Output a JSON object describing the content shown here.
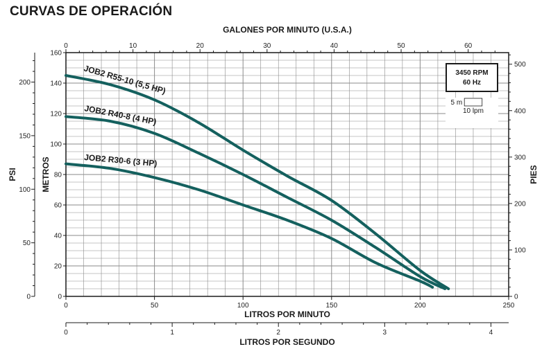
{
  "title": "CURVAS DE OPERACIÓN",
  "chart_data": {
    "type": "line",
    "axes": {
      "x_bottom": {
        "label": "LITROS POR MINUTO",
        "range": [
          0,
          250
        ],
        "ticks": [
          0,
          50,
          100,
          150,
          200,
          250
        ]
      },
      "x_top": {
        "label": "GALONES POR MINUTO (U.S.A.)",
        "range": [
          0,
          66.04
        ],
        "ticks": [
          0,
          10,
          20,
          30,
          40,
          50,
          60
        ]
      },
      "x_bottom2": {
        "label": "LITROS POR SEGUNDO",
        "range": [
          0,
          4.167
        ],
        "ticks": [
          0,
          1,
          2,
          3,
          4
        ]
      },
      "y_left_metros": {
        "label": "METROS",
        "range": [
          0,
          160
        ],
        "ticks": [
          0,
          20,
          40,
          60,
          80,
          100,
          120,
          140,
          160
        ]
      },
      "y_left_psi": {
        "label": "PSI",
        "range": [
          0,
          227.5
        ],
        "ticks": [
          0,
          50,
          100,
          150,
          200
        ]
      },
      "y_right_pies": {
        "label": "PIES",
        "range": [
          0,
          524.9
        ],
        "ticks": [
          0,
          100,
          200,
          300,
          400,
          500
        ]
      }
    },
    "grid": true,
    "series": [
      {
        "name": "JOB2 R55-10 (5,5 HP)",
        "x": [
          0,
          25,
          50,
          75,
          100,
          125,
          150,
          175,
          200,
          216
        ],
        "y": [
          145,
          139,
          129,
          114,
          96,
          79,
          63,
          41,
          17,
          5
        ]
      },
      {
        "name": "JOB2 R40-8 (4 HP)",
        "x": [
          0,
          25,
          50,
          75,
          100,
          125,
          150,
          175,
          200,
          214
        ],
        "y": [
          118,
          115,
          107,
          94,
          80,
          65,
          50,
          32,
          13,
          5
        ]
      },
      {
        "name": "JOB2 R30-6 (3 HP)",
        "x": [
          0,
          25,
          50,
          75,
          100,
          125,
          150,
          175,
          200,
          207
        ],
        "y": [
          87,
          84,
          78,
          70,
          60,
          50,
          38,
          22,
          10,
          6
        ]
      }
    ],
    "annotations": {
      "speed_box": [
        "3450 RPM",
        "60 Hz"
      ],
      "scale_box": {
        "height_label": "5 m",
        "width_label": "10 lpm"
      }
    },
    "colors": {
      "curve": "#14605e",
      "grid": "#8a8a8a",
      "frame": "#1a1a1a"
    }
  }
}
